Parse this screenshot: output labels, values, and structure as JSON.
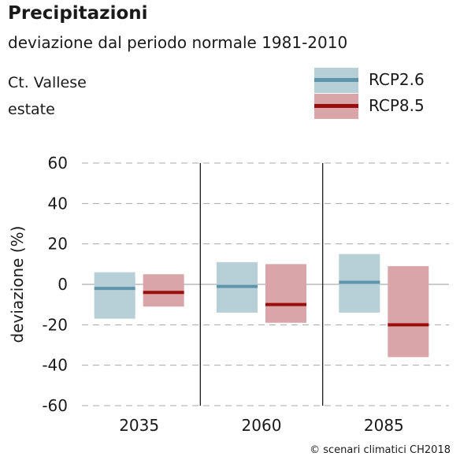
{
  "header": {
    "title": "Precipitazioni",
    "subtitle": "deviazione dal periodo normale 1981-2010",
    "region": "Ct. Vallese",
    "season": "estate"
  },
  "legend": [
    {
      "name": "RCP2.6",
      "box_color": "#b7d0d8",
      "line_color": "#5e95ab"
    },
    {
      "name": "RCP8.5",
      "box_color": "#d9a5a8",
      "line_color": "#9b0e0e"
    }
  ],
  "credit": "© scenari climatici CH2018",
  "chart_data": {
    "type": "bar",
    "ylabel": "deviazione (%)",
    "ylim": [
      -60,
      60
    ],
    "yticks": [
      60,
      40,
      20,
      0,
      -20,
      -40,
      -60
    ],
    "grid": true,
    "legend_position": "top-right",
    "categories": [
      "2035",
      "2060",
      "2085"
    ],
    "series": [
      {
        "name": "RCP2.6",
        "box_color": "#b7d0d8",
        "median_color": "#5e95ab",
        "low": [
          -17,
          -14,
          -14
        ],
        "median": [
          -2,
          -1,
          1
        ],
        "high": [
          6,
          11,
          15
        ]
      },
      {
        "name": "RCP8.5",
        "box_color": "#d9a5a8",
        "median_color": "#9b0e0e",
        "low": [
          -11,
          -19,
          -36
        ],
        "median": [
          -4,
          -10,
          -20
        ],
        "high": [
          5,
          10,
          9
        ]
      }
    ]
  }
}
